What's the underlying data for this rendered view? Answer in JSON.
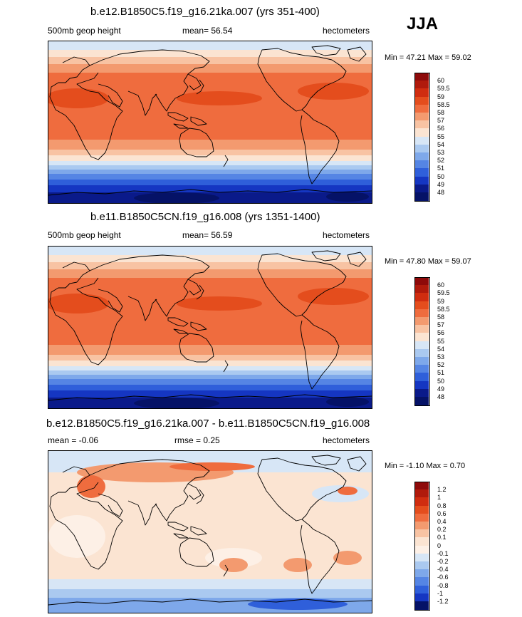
{
  "season": "JJA",
  "panels": [
    {
      "id": "p1",
      "title": "b.e12.B1850C5.f19_g16.21ka.007 (yrs 351-400)",
      "left_label": "500mb geop height",
      "mean_text": "mean=  56.54",
      "right_label": "hectometers",
      "minmax": "Min =  47.21 Max =  59.02",
      "scheme": "abs",
      "labelbar": {
        "labels": [
          "60",
          "59.5",
          "59",
          "58.5",
          "58",
          "57",
          "56",
          "55",
          "54",
          "53",
          "52",
          "51",
          "50",
          "49",
          "48"
        ],
        "colors": [
          "#8e0a0a",
          "#b01a0c",
          "#d02d10",
          "#e44d1d",
          "#ef6c3e",
          "#f39a6f",
          "#f8c3a3",
          "#fbe4d2",
          "#d7e6f6",
          "#aac9f0",
          "#7ea8ea",
          "#5585e4",
          "#2f5fda",
          "#1536c2",
          "#0a1a8a",
          "#051267"
        ]
      }
    },
    {
      "id": "p2",
      "title": "b.e11.B1850C5CN.f19_g16.008 (yrs 1351-1400)",
      "left_label": "500mb geop height",
      "mean_text": "mean=  56.59",
      "right_label": "hectometers",
      "minmax": "Min =  47.80 Max =  59.07",
      "scheme": "abs",
      "labelbar": {
        "labels": [
          "60",
          "59.5",
          "59",
          "58.5",
          "58",
          "57",
          "56",
          "55",
          "54",
          "53",
          "52",
          "51",
          "50",
          "49",
          "48"
        ],
        "colors": [
          "#8e0a0a",
          "#b01a0c",
          "#d02d10",
          "#e44d1d",
          "#ef6c3e",
          "#f39a6f",
          "#f8c3a3",
          "#fbe4d2",
          "#d7e6f6",
          "#aac9f0",
          "#7ea8ea",
          "#5585e4",
          "#2f5fda",
          "#1536c2",
          "#0a1a8a",
          "#051267"
        ]
      }
    },
    {
      "id": "p3",
      "title": "b.e12.B1850C5.f19_g16.21ka.007 - b.e11.B1850C5CN.f19_g16.008",
      "left_label": "mean =  -0.06",
      "mean_text": "rmse =   0.25",
      "right_label": "hectometers",
      "minmax": "Min = -1.10 Max =   0.70",
      "scheme": "diff",
      "labelbar": {
        "labels": [
          "1.2",
          "1",
          "0.8",
          "0.6",
          "0.4",
          "0.2",
          "0.1",
          "0",
          "-0.1",
          "-0.2",
          "-0.4",
          "-0.6",
          "-0.8",
          "-1",
          "-1.2"
        ],
        "colors": [
          "#8e0a0a",
          "#b01a0c",
          "#d02d10",
          "#e44d1d",
          "#ef6c3e",
          "#f39a6f",
          "#f8c3a3",
          "#fbe4d2",
          "#fdf0e6",
          "#d7e6f6",
          "#aac9f0",
          "#7ea8ea",
          "#5585e4",
          "#2f5fda",
          "#1536c2",
          "#051267"
        ]
      }
    }
  ]
}
